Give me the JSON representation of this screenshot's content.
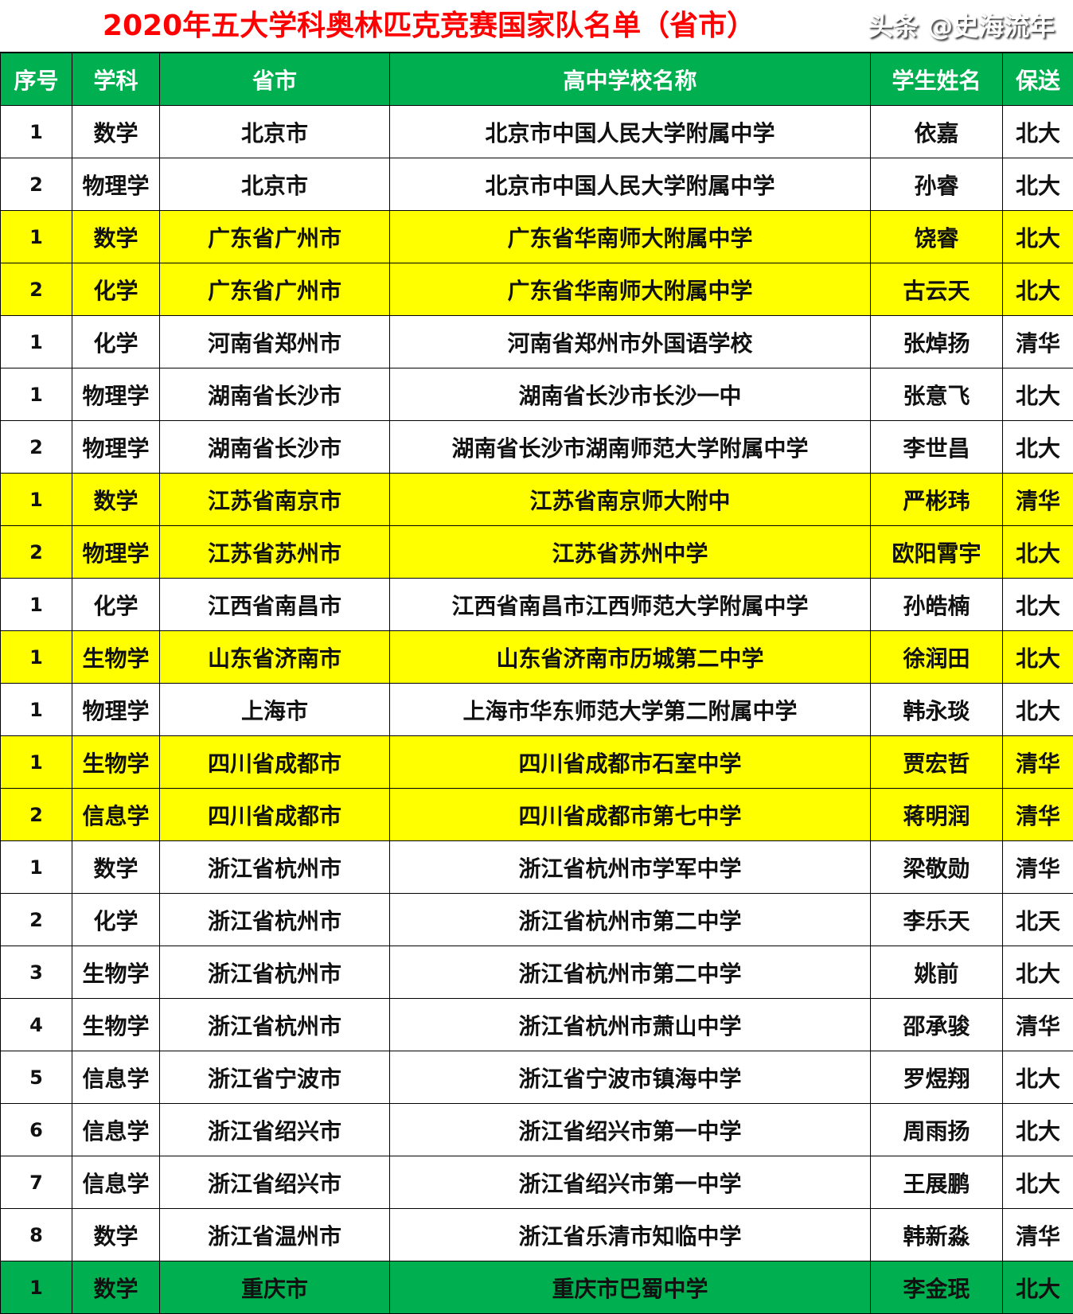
{
  "title": "2020年五大学科奥林匹克竞赛国家队名单（省市）",
  "headers": [
    "序号",
    "学科",
    "省市",
    "高中学校名称",
    "学生姓名",
    "保送"
  ],
  "colors": {
    "header_bg": "#00b050",
    "highlight": "#ffff00",
    "title": "#ff0000"
  },
  "rows": [
    {
      "no": "1",
      "subject": "数学",
      "city": "北京市",
      "school": "北京市中国人民大学附属中学",
      "name": "依嘉",
      "admit": "北大",
      "hl": ""
    },
    {
      "no": "2",
      "subject": "物理学",
      "city": "北京市",
      "school": "北京市中国人民大学附属中学",
      "name": "孙睿",
      "admit": "北大",
      "hl": ""
    },
    {
      "no": "1",
      "subject": "数学",
      "city": "广东省广州市",
      "school": "广东省华南师大附属中学",
      "name": "饶睿",
      "admit": "北大",
      "hl": "yellow"
    },
    {
      "no": "2",
      "subject": "化学",
      "city": "广东省广州市",
      "school": "广东省华南师大附属中学",
      "name": "古云天",
      "admit": "北大",
      "hl": "yellow"
    },
    {
      "no": "1",
      "subject": "化学",
      "city": "河南省郑州市",
      "school": "河南省郑州市外国语学校",
      "name": "张焯扬",
      "admit": "清华",
      "hl": ""
    },
    {
      "no": "1",
      "subject": "物理学",
      "city": "湖南省长沙市",
      "school": "湖南省长沙市长沙一中",
      "name": "张意飞",
      "admit": "北大",
      "hl": ""
    },
    {
      "no": "2",
      "subject": "物理学",
      "city": "湖南省长沙市",
      "school": "湖南省长沙市湖南师范大学附属中学",
      "name": "李世昌",
      "admit": "北大",
      "hl": ""
    },
    {
      "no": "1",
      "subject": "数学",
      "city": "江苏省南京市",
      "school": "江苏省南京师大附中",
      "name": "严彬玮",
      "admit": "清华",
      "hl": "yellow"
    },
    {
      "no": "2",
      "subject": "物理学",
      "city": "江苏省苏州市",
      "school": "江苏省苏州中学",
      "name": "欧阳霄宇",
      "admit": "北大",
      "hl": "yellow"
    },
    {
      "no": "1",
      "subject": "化学",
      "city": "江西省南昌市",
      "school": "江西省南昌市江西师范大学附属中学",
      "name": "孙皓楠",
      "admit": "北大",
      "hl": ""
    },
    {
      "no": "1",
      "subject": "生物学",
      "city": "山东省济南市",
      "school": "山东省济南市历城第二中学",
      "name": "徐润田",
      "admit": "北大",
      "hl": "yellow"
    },
    {
      "no": "1",
      "subject": "物理学",
      "city": "上海市",
      "school": "上海市华东师范大学第二附属中学",
      "name": "韩永琰",
      "admit": "北大",
      "hl": ""
    },
    {
      "no": "1",
      "subject": "生物学",
      "city": "四川省成都市",
      "school": "四川省成都市石室中学",
      "name": "贾宏哲",
      "admit": "清华",
      "hl": "yellow"
    },
    {
      "no": "2",
      "subject": "信息学",
      "city": "四川省成都市",
      "school": "四川省成都市第七中学",
      "name": "蒋明润",
      "admit": "清华",
      "hl": "yellow"
    },
    {
      "no": "1",
      "subject": "数学",
      "city": "浙江省杭州市",
      "school": "浙江省杭州市学军中学",
      "name": "梁敬勋",
      "admit": "清华",
      "hl": ""
    },
    {
      "no": "2",
      "subject": "化学",
      "city": "浙江省杭州市",
      "school": "浙江省杭州市第二中学",
      "name": "李乐天",
      "admit": "北天",
      "hl": ""
    },
    {
      "no": "3",
      "subject": "生物学",
      "city": "浙江省杭州市",
      "school": "浙江省杭州市第二中学",
      "name": "姚前",
      "admit": "北大",
      "hl": ""
    },
    {
      "no": "4",
      "subject": "生物学",
      "city": "浙江省杭州市",
      "school": "浙江省杭州市萧山中学",
      "name": "邵承骏",
      "admit": "清华",
      "hl": ""
    },
    {
      "no": "5",
      "subject": "信息学",
      "city": "浙江省宁波市",
      "school": "浙江省宁波市镇海中学",
      "name": "罗煜翔",
      "admit": "北大",
      "hl": ""
    },
    {
      "no": "6",
      "subject": "信息学",
      "city": "浙江省绍兴市",
      "school": "浙江省绍兴市第一中学",
      "name": "周雨扬",
      "admit": "北大",
      "hl": ""
    },
    {
      "no": "7",
      "subject": "信息学",
      "city": "浙江省绍兴市",
      "school": "浙江省绍兴市第一中学",
      "name": "王展鹏",
      "admit": "北大",
      "hl": ""
    },
    {
      "no": "8",
      "subject": "数学",
      "city": "浙江省温州市",
      "school": "浙江省乐清市知临中学",
      "name": "韩新淼",
      "admit": "清华",
      "hl": ""
    },
    {
      "no": "1",
      "subject": "数学",
      "city": "重庆市",
      "school": "重庆市巴蜀中学",
      "name": "李金珉",
      "admit": "北大",
      "hl": "green"
    }
  ],
  "watermark": "头条 @史海流年"
}
